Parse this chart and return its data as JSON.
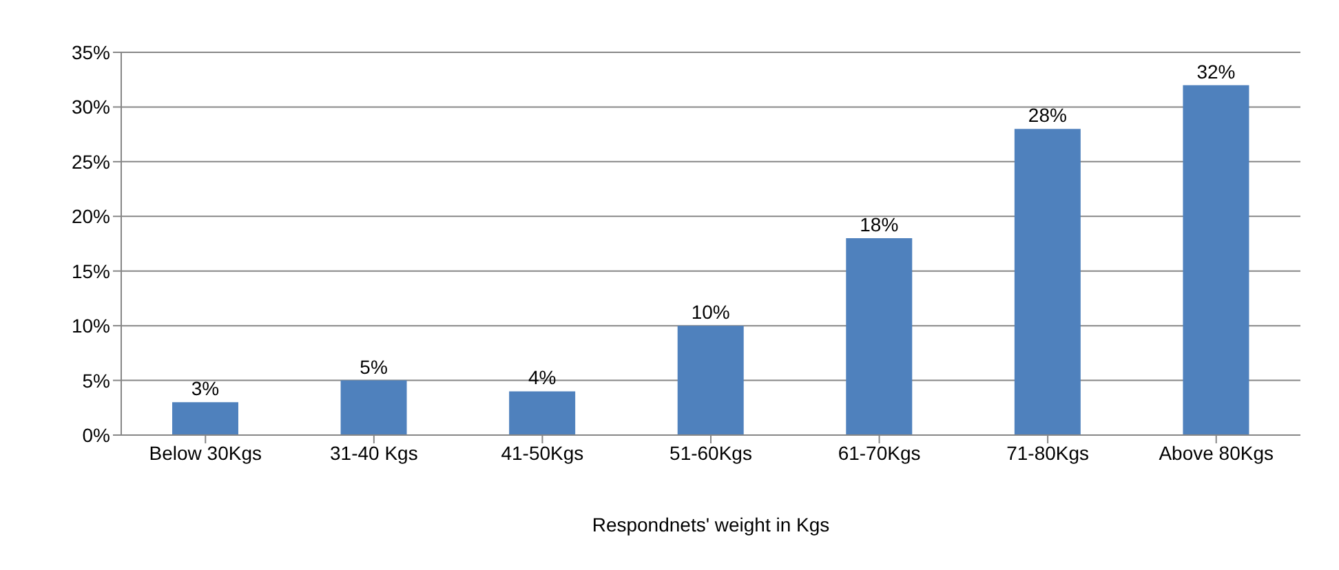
{
  "chart_data": {
    "type": "bar",
    "xlabel": "Respondnets' weight in Kgs",
    "categories": [
      "Below 30Kgs",
      "31-40 Kgs",
      "41-50Kgs",
      "51-60Kgs",
      "61-70Kgs",
      "71-80Kgs",
      "Above 80Kgs"
    ],
    "values": [
      3,
      5,
      4,
      10,
      18,
      28,
      32
    ],
    "value_labels": [
      "3%",
      "5%",
      "4%",
      "10%",
      "18%",
      "28%",
      "32%"
    ],
    "color": "#4f81bd",
    "ylim": [
      0,
      35
    ],
    "yticks": [
      {
        "value": 0,
        "label": "0%"
      },
      {
        "value": 5,
        "label": "5%"
      },
      {
        "value": 10,
        "label": "10%"
      },
      {
        "value": 15,
        "label": "15%"
      },
      {
        "value": 20,
        "label": "20%"
      },
      {
        "value": 25,
        "label": "25%"
      },
      {
        "value": 30,
        "label": "30%"
      },
      {
        "value": 35,
        "label": "35%"
      }
    ],
    "grid": "y"
  }
}
